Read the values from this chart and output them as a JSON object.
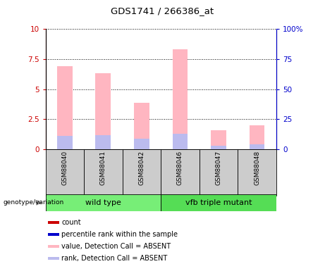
{
  "title": "GDS1741 / 266386_at",
  "samples": [
    "GSM88040",
    "GSM88041",
    "GSM88042",
    "GSM88046",
    "GSM88047",
    "GSM88048"
  ],
  "groups": [
    "wild type",
    "vfb triple mutant"
  ],
  "value_bars": [
    6.9,
    6.3,
    3.85,
    8.3,
    1.6,
    2.0
  ],
  "rank_bars": [
    1.1,
    1.15,
    0.9,
    1.3,
    0.3,
    0.4
  ],
  "ylim_left": [
    0,
    10
  ],
  "ylim_right": [
    0,
    100
  ],
  "yticks_left": [
    0,
    2.5,
    5,
    7.5,
    10
  ],
  "yticks_right": [
    0,
    25,
    50,
    75,
    100
  ],
  "ytick_labels_left": [
    "0",
    "2.5",
    "5",
    "7.5",
    "10"
  ],
  "ytick_labels_right": [
    "0",
    "25",
    "50",
    "75",
    "100%"
  ],
  "value_color": "#FFB6C1",
  "rank_color": "#BBBBEE",
  "legend_items": [
    {
      "label": "count",
      "color": "#CC0000"
    },
    {
      "label": "percentile rank within the sample",
      "color": "#0000CC"
    },
    {
      "label": "value, Detection Call = ABSENT",
      "color": "#FFB6C1"
    },
    {
      "label": "rank, Detection Call = ABSENT",
      "color": "#BBBBEE"
    }
  ],
  "group_colors": [
    "#77EE77",
    "#55DD55"
  ],
  "sample_box_color": "#CCCCCC",
  "grid_color": "#000000",
  "left_axis_color": "#CC0000",
  "right_axis_color": "#0000CC",
  "bar_width": 0.4
}
